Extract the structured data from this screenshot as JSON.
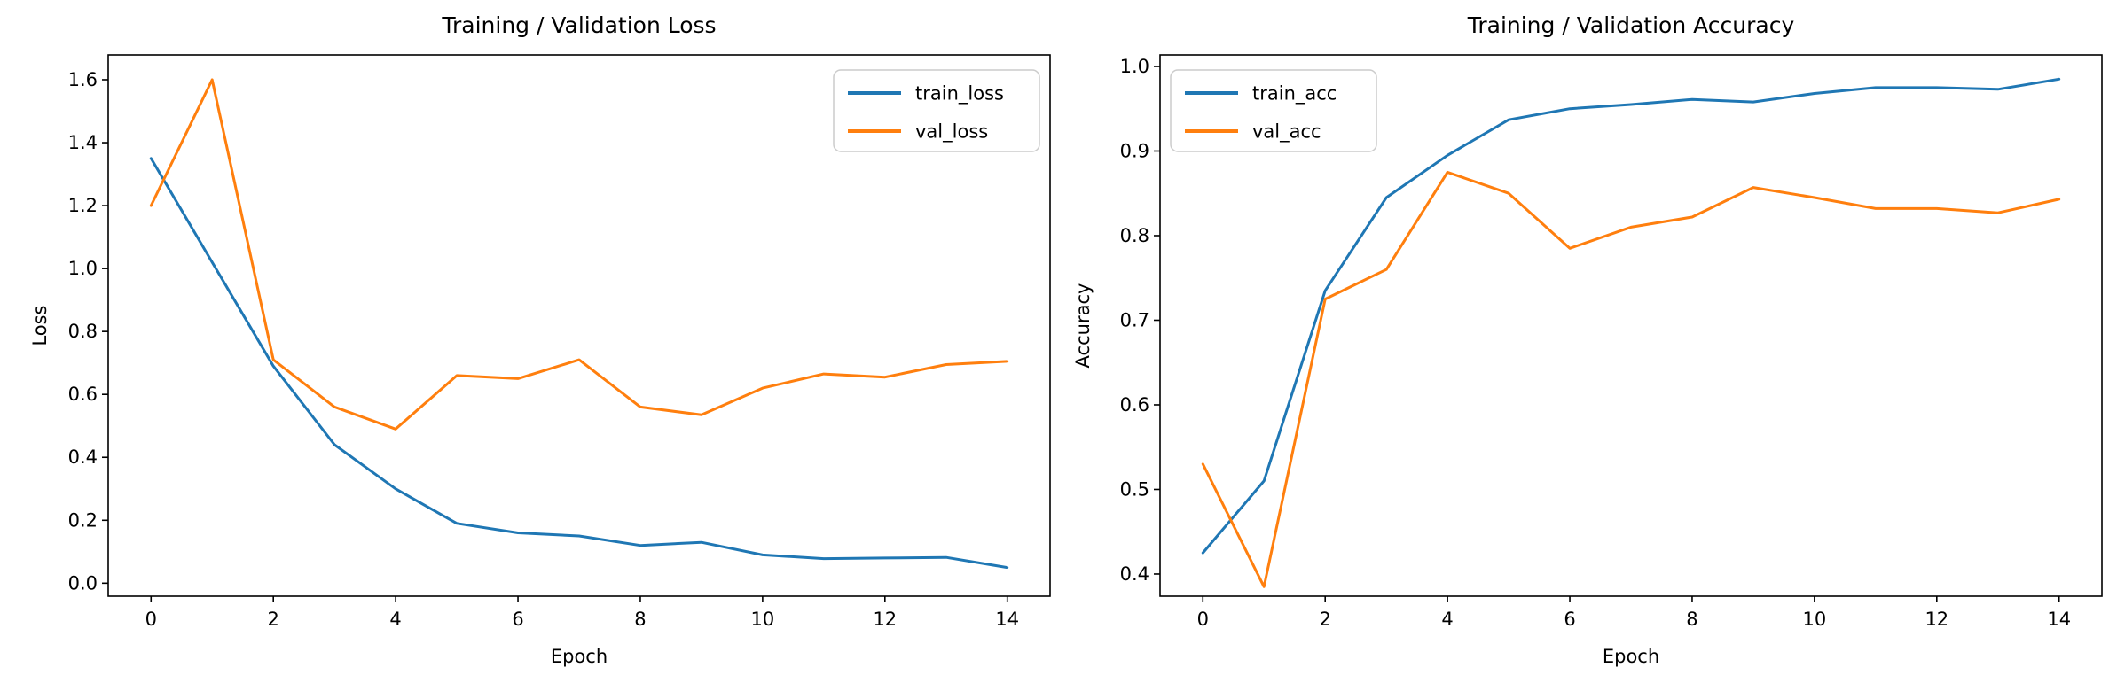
{
  "figure": {
    "background": "#ffffff"
  },
  "chart_data": [
    {
      "type": "line",
      "id": "loss",
      "title": "Training / Validation Loss",
      "xlabel": "Epoch",
      "ylabel": "Loss",
      "x": [
        0,
        1,
        2,
        3,
        4,
        5,
        6,
        7,
        8,
        9,
        10,
        11,
        12,
        13,
        14
      ],
      "series": [
        {
          "name": "train_loss",
          "color": "#1f77b4",
          "values": [
            1.35,
            1.02,
            0.69,
            0.44,
            0.3,
            0.19,
            0.16,
            0.15,
            0.12,
            0.13,
            0.09,
            0.078,
            0.08,
            0.082,
            0.05
          ]
        },
        {
          "name": "val_loss",
          "color": "#ff7f0e",
          "values": [
            1.2,
            1.6,
            0.71,
            0.56,
            0.49,
            0.66,
            0.65,
            0.71,
            0.56,
            0.535,
            0.62,
            0.665,
            0.655,
            0.695,
            0.705
          ]
        }
      ],
      "xlim": [
        -0.7,
        14.7
      ],
      "ylim": [
        -0.0413,
        1.6788
      ],
      "xticks": {
        "values": [
          0,
          2,
          4,
          6,
          8,
          10,
          12,
          14
        ],
        "labels": [
          "0",
          "2",
          "4",
          "6",
          "8",
          "10",
          "12",
          "14"
        ]
      },
      "yticks": {
        "values": [
          0.0,
          0.2,
          0.4,
          0.6,
          0.8,
          1.0,
          1.2,
          1.4,
          1.6
        ],
        "labels": [
          "0.0",
          "0.2",
          "0.4",
          "0.6",
          "0.8",
          "1.0",
          "1.2",
          "1.4",
          "1.6"
        ]
      },
      "legend": {
        "position": "upper right",
        "entries": [
          "train_loss",
          "val_loss"
        ]
      },
      "grid": false
    },
    {
      "type": "line",
      "id": "accuracy",
      "title": "Training / Validation Accuracy",
      "xlabel": "Epoch",
      "ylabel": "Accuracy",
      "x": [
        0,
        1,
        2,
        3,
        4,
        5,
        6,
        7,
        8,
        9,
        10,
        11,
        12,
        13,
        14
      ],
      "series": [
        {
          "name": "train_acc",
          "color": "#1f77b4",
          "values": [
            0.425,
            0.51,
            0.735,
            0.845,
            0.895,
            0.937,
            0.95,
            0.955,
            0.961,
            0.958,
            0.968,
            0.975,
            0.975,
            0.973,
            0.985
          ]
        },
        {
          "name": "val_acc",
          "color": "#ff7f0e",
          "values": [
            0.53,
            0.385,
            0.725,
            0.76,
            0.875,
            0.85,
            0.785,
            0.81,
            0.822,
            0.857,
            0.845,
            0.832,
            0.832,
            0.827,
            0.843
          ]
        }
      ],
      "xlim": [
        -0.7,
        14.7
      ],
      "ylim": [
        0.3738,
        1.0136
      ],
      "xticks": {
        "values": [
          0,
          2,
          4,
          6,
          8,
          10,
          12,
          14
        ],
        "labels": [
          "0",
          "2",
          "4",
          "6",
          "8",
          "10",
          "12",
          "14"
        ]
      },
      "yticks": {
        "values": [
          0.4,
          0.5,
          0.6,
          0.7,
          0.8,
          0.9,
          1.0
        ],
        "labels": [
          "0.4",
          "0.5",
          "0.6",
          "0.7",
          "0.8",
          "0.9",
          "1.0"
        ]
      },
      "legend": {
        "position": "upper left",
        "entries": [
          "train_acc",
          "val_acc"
        ]
      },
      "grid": false
    }
  ],
  "style": {
    "spine_color": "#000000",
    "text_color": "#000000",
    "legend_border_color": "#cccccc",
    "legend_background": "#ffffff"
  }
}
